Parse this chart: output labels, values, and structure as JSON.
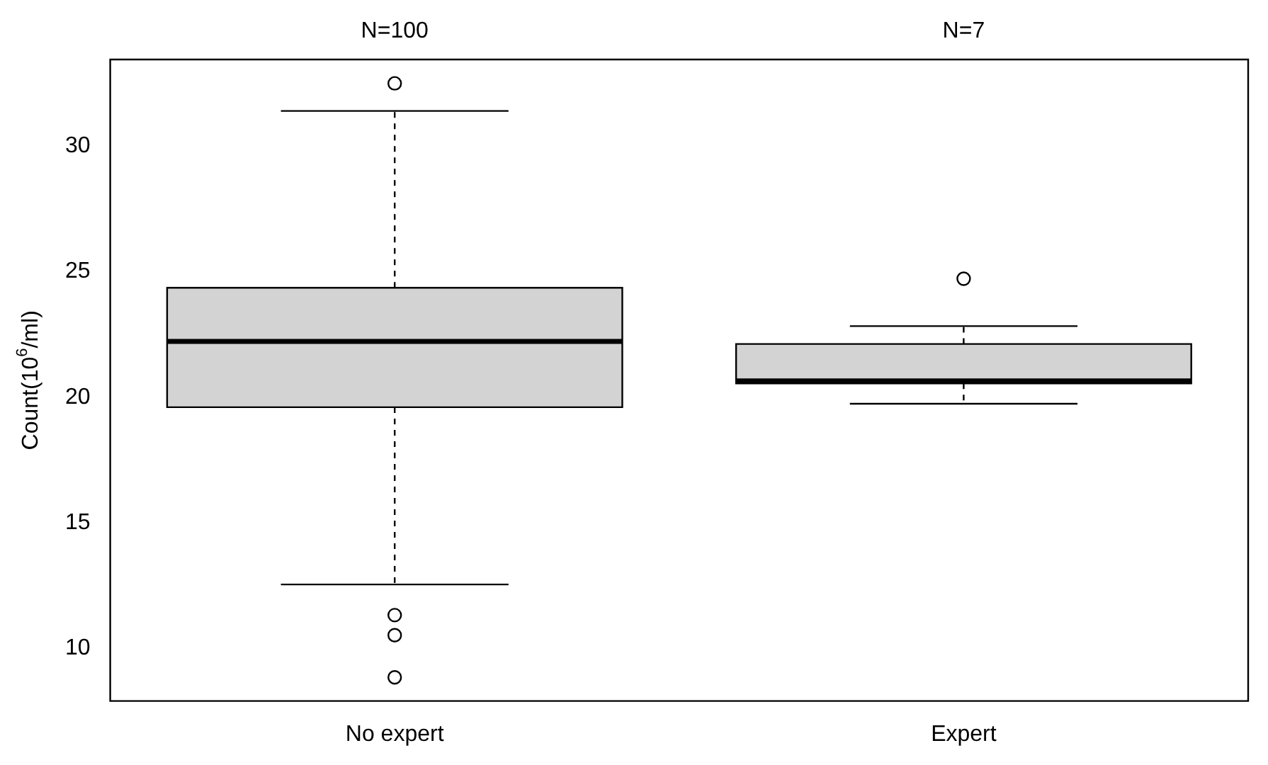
{
  "chart_data": {
    "type": "box",
    "ylabel": "Count(10$^{6}$/ml)",
    "categories": [
      "No expert",
      "Expert"
    ],
    "color": "#d3d3d3",
    "boxes": [
      {
        "low": 12.54,
        "q1": 19.6,
        "median": 22.22,
        "q3": 24.36,
        "high": 31.4,
        "outliers": [
          32.5,
          11.32,
          10.52,
          8.84
        ]
      },
      {
        "low": 19.74,
        "q1": 20.55,
        "median": 20.65,
        "q3": 22.12,
        "high": 22.83,
        "outliers": [
          24.72
        ]
      }
    ],
    "ylim": [
      7.9,
      33.45
    ],
    "yticks": [
      10,
      15,
      20,
      25,
      30
    ],
    "grid": false,
    "legend": false,
    "line_style": "dashed",
    "marker": "circle",
    "annotations": [
      "N=100",
      "N=7"
    ]
  }
}
